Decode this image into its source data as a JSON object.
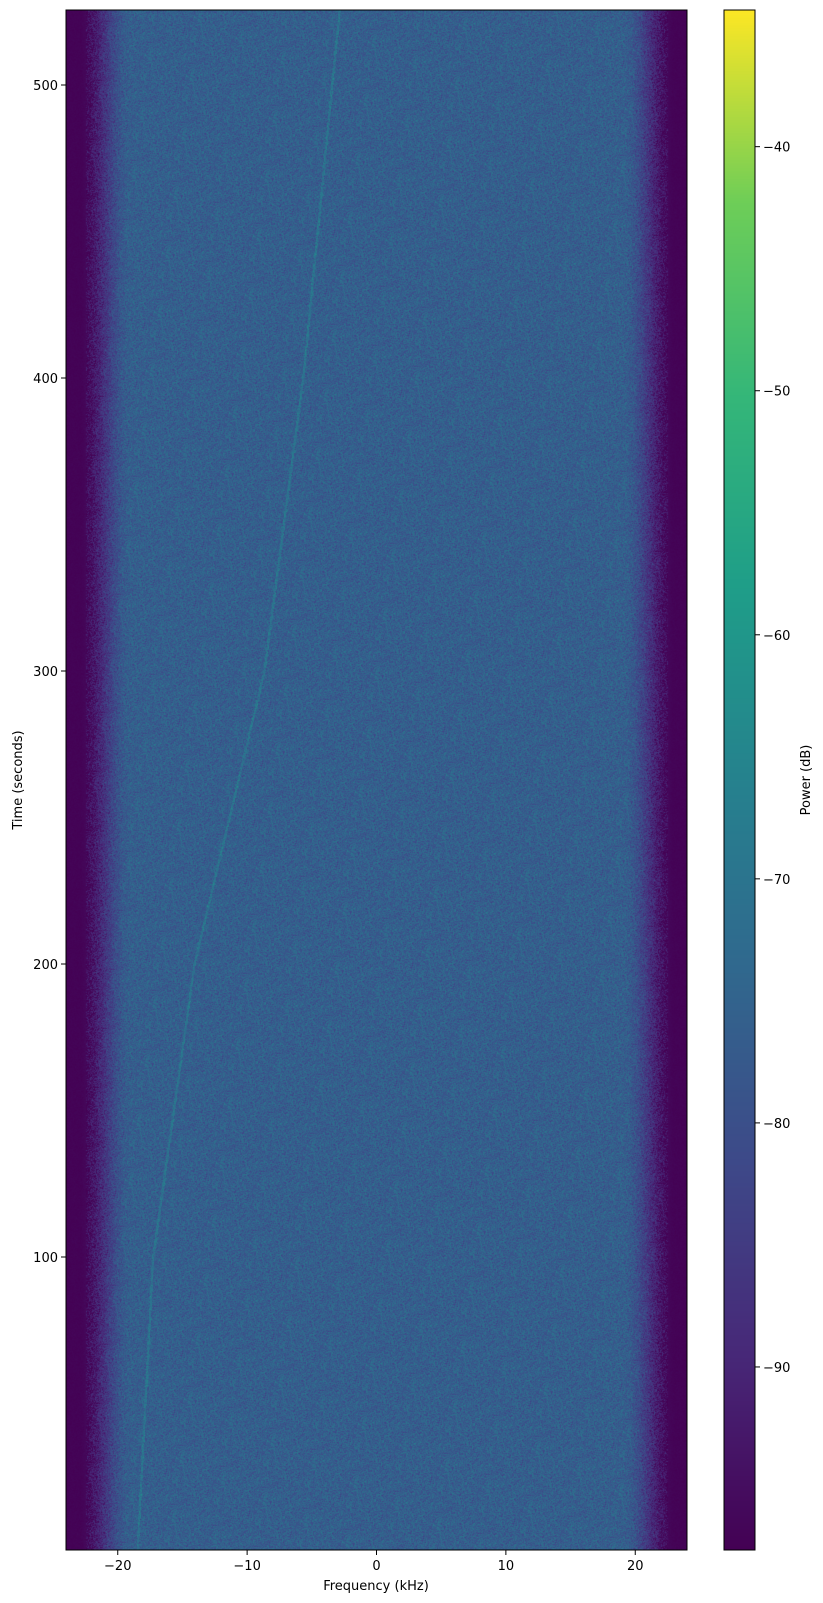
{
  "chart_data": {
    "type": "heatmap",
    "subtype": "spectrogram",
    "title": "",
    "xlabel": "Frequency (kHz)",
    "ylabel": "Time (seconds)",
    "xlim": [
      -24,
      24
    ],
    "ylim": [
      0,
      525.6
    ],
    "x_ticks": [
      -20,
      -10,
      0,
      10,
      20
    ],
    "x_tick_labels": [
      "−20",
      "−10",
      "0",
      "10",
      "20"
    ],
    "y_ticks": [
      100,
      200,
      300,
      400,
      500
    ],
    "y_tick_labels": [
      "100",
      "200",
      "300",
      "400",
      "500"
    ],
    "colormap": "viridis",
    "colorbar": {
      "label": "Power (dB)",
      "clim": [
        -97.5,
        -34.4
      ],
      "ticks": [
        -90,
        -80,
        -70,
        -60,
        -50,
        -40
      ],
      "tick_labels": [
        "−90",
        "−80",
        "−70",
        "−60",
        "−50",
        "−40"
      ]
    },
    "grid": false,
    "passband_kHz": [
      -19,
      19
    ],
    "in_band_power_dB": -76,
    "out_of_band_power_dB": -97,
    "drifting_tone_trace": {
      "time_s": [
        0,
        100,
        200,
        300,
        400,
        525
      ],
      "freq_kHz": [
        -18.5,
        -17.3,
        -14.1,
        -8.7,
        -5.7,
        -2.9
      ]
    },
    "colors": {
      "viridis_stops": [
        "#440154",
        "#482878",
        "#3e4989",
        "#31688e",
        "#26828e",
        "#1f9e89",
        "#35b779",
        "#6ece58",
        "#fde725"
      ]
    }
  }
}
